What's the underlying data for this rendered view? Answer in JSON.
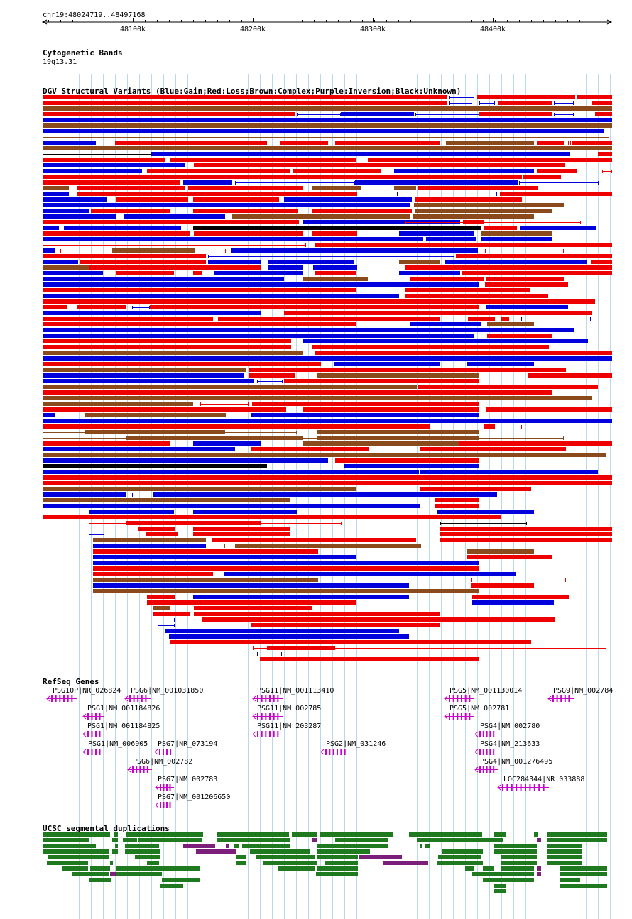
{
  "position": "chr19:48024719..48497168",
  "scale": {
    "start": 48024719,
    "end": 48497168,
    "ticks": [
      {
        "value": 48100000,
        "label": "48100k"
      },
      {
        "value": 48200000,
        "label": "48200k"
      },
      {
        "value": 48300000,
        "label": "48300k"
      },
      {
        "value": 48400000,
        "label": "48400k"
      }
    ]
  },
  "tracks": {
    "cytoband": {
      "title": "Cytogenetic Bands",
      "band": "19q13.31"
    },
    "dgv": {
      "title": "DGV Structural Variants (Blue:Gain;Red:Loss;Brown:Complex;Purple:Inversion;Black:Unknown)"
    },
    "refseq": {
      "title": "RefSeq Genes"
    },
    "segdup": {
      "title": "UCSC segmental duplications"
    }
  },
  "colors": {
    "gain": "#0000dd",
    "loss": "#ee0000",
    "complex": "#8b4a1c",
    "unknown": "#000000",
    "gene": "#cc00cc",
    "segdup_green": "#1f7a1f",
    "segdup_purple": "#7b1f7b",
    "grid": "#bcd9ec"
  },
  "genes": [
    {
      "name": "PSG10P|NR_026824"
    },
    {
      "name": "PSG6|NM_001031850"
    },
    {
      "name": "PSG1|NM_001184826"
    },
    {
      "name": "PSG1|NM_001184825"
    },
    {
      "name": "PSG1|NM_006905"
    },
    {
      "name": "PSG7|NR_073194"
    },
    {
      "name": "PSG6|NM_002782"
    },
    {
      "name": "PSG7|NM_002783"
    },
    {
      "name": "PSG7|NM_001206650"
    },
    {
      "name": "PSG11|NM_001113410"
    },
    {
      "name": "PSG11|NM_002785"
    },
    {
      "name": "PSG11|NM_203287"
    },
    {
      "name": "PSG2|NM_031246"
    },
    {
      "name": "PSG5|NM_001130014"
    },
    {
      "name": "PSG5|NM_002781"
    },
    {
      "name": "PSG9|NM_002784"
    },
    {
      "name": "PSG4|NM_002780"
    },
    {
      "name": "PSG4|NM_213633"
    },
    {
      "name": "PSG4|NM_001276495"
    },
    {
      "name": "LOC284344|NR_033888"
    }
  ]
}
